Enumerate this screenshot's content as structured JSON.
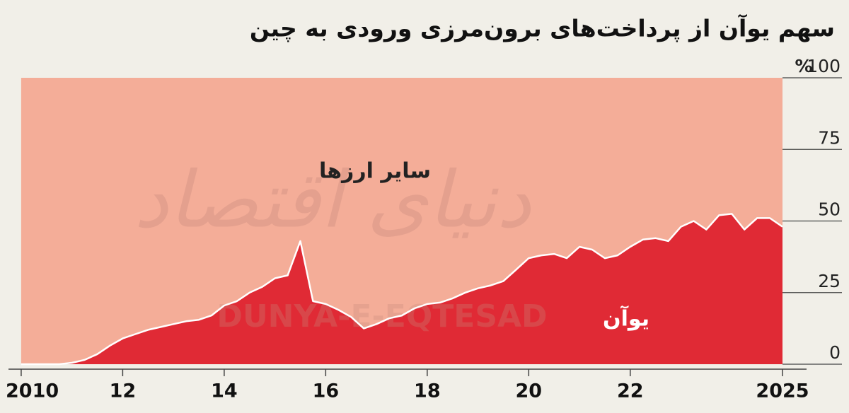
{
  "chart_data": {
    "type": "stacked-area",
    "title": "سهم یوآن از پرداخت‌های برون‌مرزی ورودی به چین",
    "unit": "%",
    "watermark": [
      "دنیای اقتصاد",
      "DUNYA-E-EQTESAD"
    ],
    "x": [
      2010,
      2010.25,
      2010.5,
      2010.75,
      2011,
      2011.25,
      2011.5,
      2011.75,
      2012,
      2012.25,
      2012.5,
      2012.75,
      2013,
      2013.25,
      2013.5,
      2013.75,
      2014,
      2014.25,
      2014.5,
      2014.75,
      2015,
      2015.25,
      2015.5,
      2015.75,
      2016,
      2016.25,
      2016.5,
      2016.75,
      2017,
      2017.25,
      2017.5,
      2017.75,
      2018,
      2018.25,
      2018.5,
      2018.75,
      2019,
      2019.25,
      2019.5,
      2019.75,
      2020,
      2020.25,
      2020.5,
      2020.75,
      2021,
      2021.25,
      2021.5,
      2021.75,
      2022,
      2022.25,
      2022.5,
      2022.75,
      2023,
      2023.25,
      2023.5,
      2023.75,
      2024,
      2024.25,
      2024.5,
      2024.75,
      2025
    ],
    "series": [
      {
        "name": "یوآن",
        "color": "#e02a35",
        "values": [
          0,
          0,
          0,
          0,
          0.5,
          1.5,
          3.5,
          6.5,
          9,
          10.5,
          12,
          13,
          14,
          15,
          15.5,
          17,
          20.5,
          22,
          25,
          27,
          30,
          31,
          43,
          22,
          21,
          19,
          16.5,
          12.5,
          14,
          16,
          17,
          19.5,
          21,
          21.5,
          23,
          25,
          26.5,
          27.5,
          29,
          33,
          37,
          38,
          38.5,
          37,
          41,
          40,
          37,
          38,
          41,
          43.5,
          44,
          43,
          48,
          50,
          47,
          52,
          52.5,
          47,
          51,
          51,
          48
        ]
      },
      {
        "name": "سایر ارزها",
        "color": "#f4ad98",
        "values": [
          100,
          100,
          100,
          100,
          99.5,
          98.5,
          96.5,
          93.5,
          91,
          89.5,
          88,
          87,
          86,
          85,
          84.5,
          83,
          79.5,
          78,
          75,
          73,
          70,
          69,
          57,
          78,
          79,
          81,
          83.5,
          87.5,
          86,
          84,
          83,
          80.5,
          79,
          78.5,
          77,
          75,
          73.5,
          72.5,
          71,
          67,
          63,
          62,
          61.5,
          63,
          59,
          60,
          63,
          62,
          59,
          56.5,
          56,
          57,
          52,
          50,
          53,
          48,
          47.5,
          53,
          49,
          49,
          52
        ]
      }
    ],
    "xlim": [
      2009.75,
      2025
    ],
    "xticks": [
      2010,
      {
        "value": 2012,
        "label": "12"
      },
      {
        "value": 2014,
        "label": "14"
      },
      {
        "value": 2016,
        "label": "16"
      },
      {
        "value": 2018,
        "label": "18"
      },
      {
        "value": 2020,
        "label": "20"
      },
      {
        "value": 2022,
        "label": "22"
      },
      2025
    ],
    "ylim": [
      0,
      100
    ],
    "yticks": [
      0,
      25,
      50,
      75,
      100
    ],
    "line_color": "#ffffff"
  }
}
